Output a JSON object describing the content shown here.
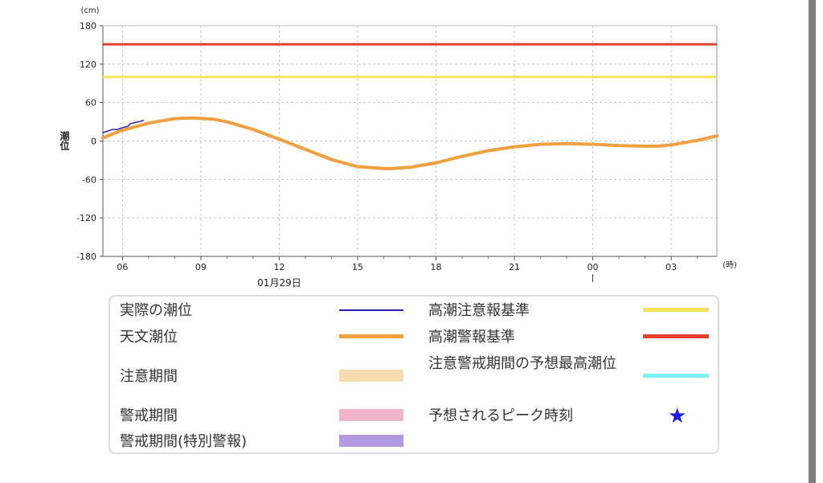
{
  "chart_data": {
    "type": "line",
    "y_unit": "(cm)",
    "x_unit": "(時)",
    "ylabel": "潮位",
    "date_label": "01月29日",
    "ylim": [
      -180,
      180
    ],
    "xlim": [
      "05:15",
      "04:45 (+1日)"
    ],
    "y_ticks": [
      "180",
      "120",
      "60",
      "0",
      "-60",
      "-120",
      "-180"
    ],
    "x_ticks": [
      "06",
      "09",
      "12",
      "15",
      "18",
      "21",
      "00",
      "03"
    ],
    "grid": true,
    "series": [
      {
        "name": "実際の潮位",
        "color": "#2a1fb8",
        "x_hours": [
          5.25,
          5.4,
          5.6,
          5.8,
          6.0,
          6.2,
          6.3,
          6.5,
          6.7,
          6.8
        ],
        "values": [
          13,
          15,
          18,
          18,
          21,
          23,
          27,
          29,
          31,
          32
        ]
      },
      {
        "name": "天文潮位",
        "color": "#f0a040",
        "x_hours": [
          5.25,
          6,
          7,
          8,
          8.7,
          9.5,
          10,
          11,
          12,
          13,
          14,
          15,
          16,
          16.3,
          17,
          18,
          19,
          20,
          21,
          22,
          23,
          24,
          25,
          26,
          26.5,
          27,
          28,
          28.75
        ],
        "values": [
          5,
          17,
          28,
          35,
          36,
          34,
          30,
          18,
          3,
          -13,
          -29,
          -40,
          -43,
          -43,
          -41,
          -34,
          -24,
          -15,
          -9,
          -5,
          -4,
          -5,
          -7,
          -8,
          -8,
          -6,
          1,
          8
        ]
      },
      {
        "name": "高潮警報基準",
        "color": "#e0422c",
        "constant": 151
      },
      {
        "name": "高潮注意報基準",
        "color": "#f2e35a",
        "constant": 100
      }
    ]
  },
  "legend": {
    "actual": "実際の潮位",
    "astro": "天文潮位",
    "caution_period": "注意期間",
    "warning_period": "警戒期間",
    "special_warning_period": "警戒期間(特別警報)",
    "advisory_std": "高潮注意報基準",
    "warning_std": "高潮警報基準",
    "predicted_max": "注意警戒期間の予想最高潮位",
    "peak_time": "予想されるピーク時刻",
    "star_glyph": "★"
  },
  "colors": {
    "actual": "#2a1fb8",
    "astro": "#f0a040",
    "caution_period": "#f6dcb0",
    "warning_period": "#f2b6cc",
    "special_warning_period": "#b39ae0",
    "advisory_std": "#f2e35a",
    "warning_std": "#e0422c",
    "predicted_max": "#7ff0f4",
    "star": "#1a1ae0"
  }
}
